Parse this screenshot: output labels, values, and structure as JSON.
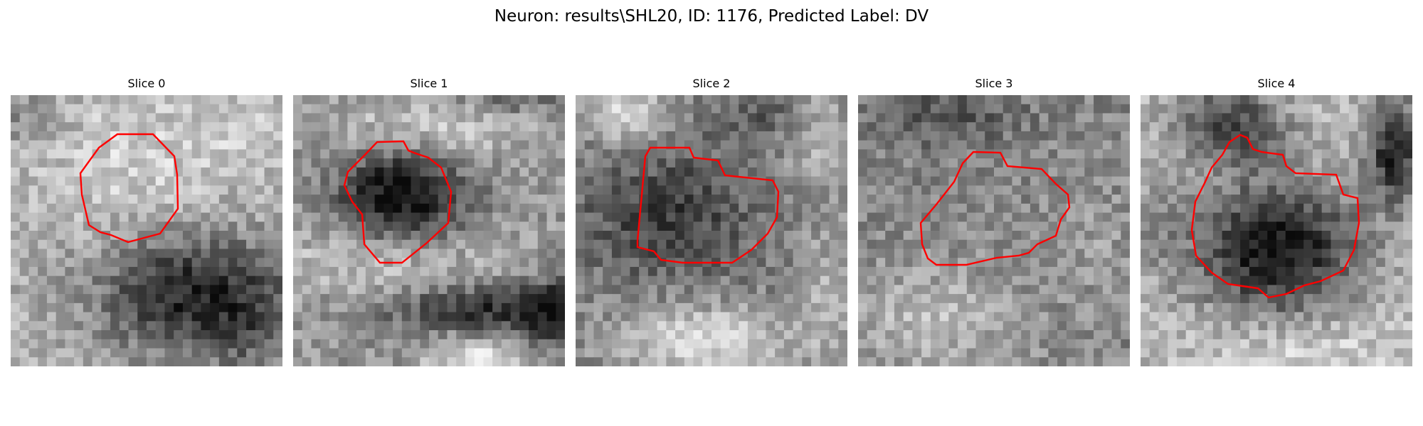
{
  "figure": {
    "title": "Neuron: results\\SHL20, ID: 1176, Predicted Label: DV"
  },
  "panels": [
    {
      "title": "Slice 0",
      "style": "slice0"
    },
    {
      "title": "Slice 1",
      "style": "slice1"
    },
    {
      "title": "Slice 2",
      "style": "slice2"
    },
    {
      "title": "Slice 3",
      "style": "slice3"
    },
    {
      "title": "Slice 4",
      "style": "slice4"
    }
  ],
  "colors": {
    "outline": "#ff0000",
    "colormap": "gray"
  }
}
